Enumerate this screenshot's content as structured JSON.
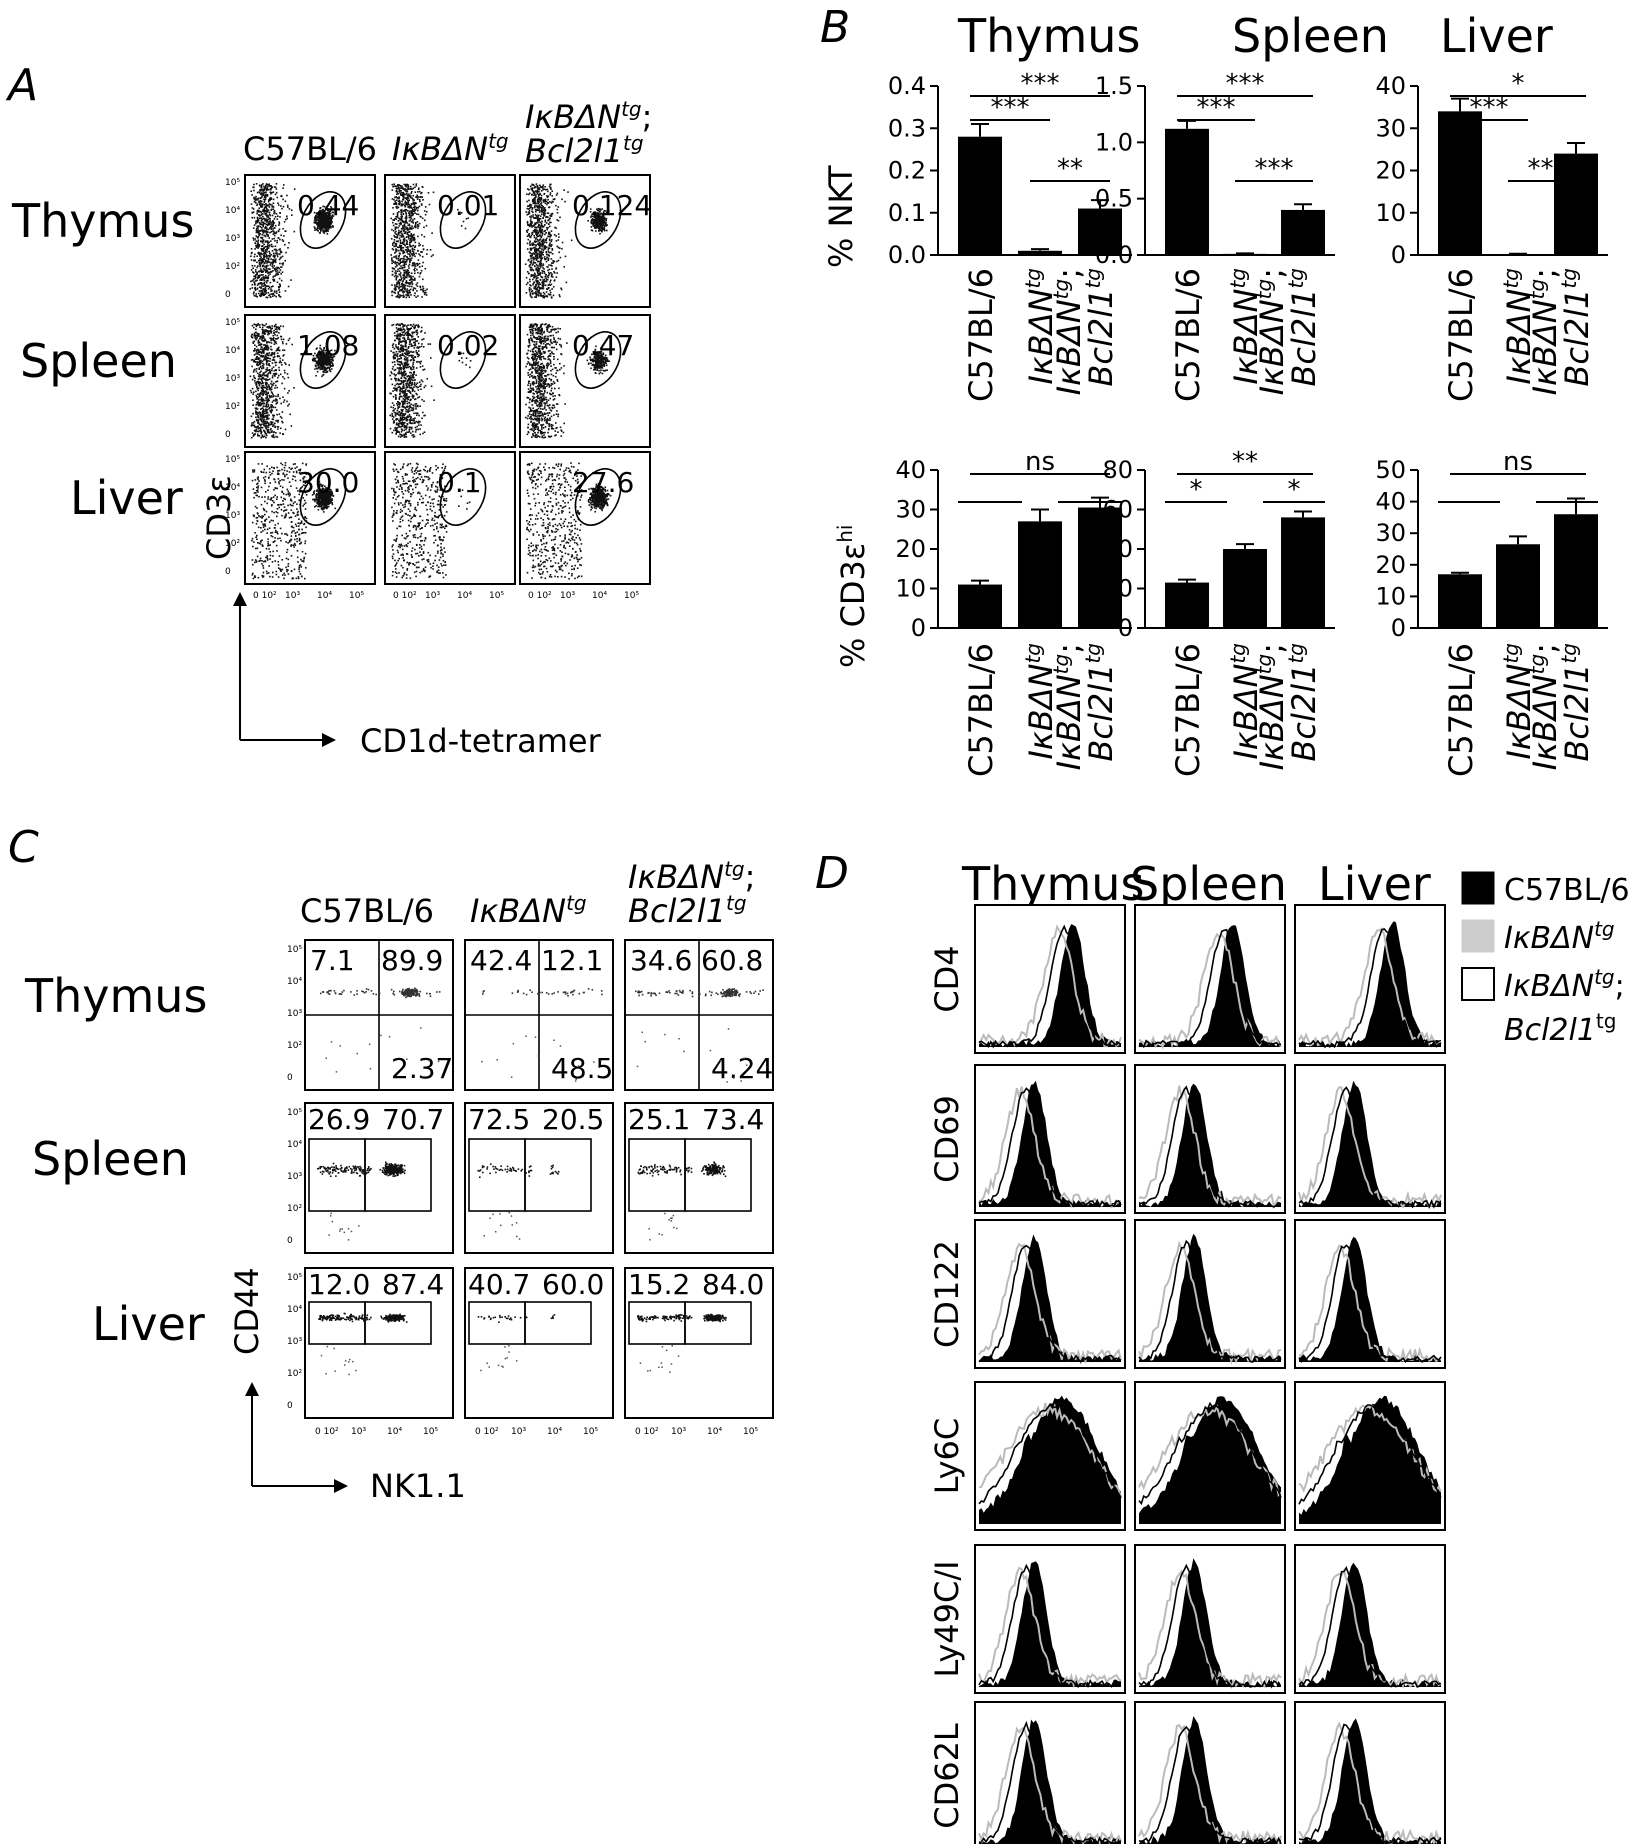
{
  "panels": {
    "A": {
      "letter": "A",
      "genotypes": [
        "C57BL/6",
        "IκBΔN",
        "IκBΔN",
        "Bcl2l1"
      ],
      "sup": "tg",
      "semicolon": ";",
      "tissues": [
        "Thymus",
        "Spleen",
        "Liver"
      ],
      "values": [
        [
          "0.44",
          "0.01",
          "0.124"
        ],
        [
          "1.08",
          "0.02",
          "0.47"
        ],
        [
          "30.0",
          "0.1",
          "27.6"
        ]
      ],
      "y_axis": "CD3ε",
      "x_axis": "CD1d-tetramer"
    },
    "B": {
      "letter": "B",
      "organs": [
        "Thymus",
        "Spleen",
        "Liver"
      ],
      "ylabel_top": "% NKT",
      "ylabel_bottom": "% CD3ε",
      "ylabel_bottom_sup": "hi",
      "categories": [
        "C57BL/6",
        "IκBΔN",
        "IκBΔN",
        "Bcl2l1"
      ],
      "sup": "tg",
      "semicolon": ";"
    },
    "C": {
      "letter": "C",
      "genotypes": [
        "C57BL/6",
        "IκBΔN",
        "IκBΔN",
        "Bcl2l1"
      ],
      "sup": "tg",
      "semicolon": ";",
      "tissues": [
        "Thymus",
        "Spleen",
        "Liver"
      ],
      "y_axis": "CD44",
      "x_axis": "NK1.1",
      "thymus_values": [
        [
          "7.1",
          "89.9",
          "2.37"
        ],
        [
          "42.4",
          "12.1",
          "48.5"
        ],
        [
          "34.6",
          "60.8",
          "4.24"
        ]
      ],
      "spleen_values": [
        [
          "26.9",
          "70.7"
        ],
        [
          "72.5",
          "20.5"
        ],
        [
          "25.1",
          "73.4"
        ]
      ],
      "liver_values": [
        [
          "12.0",
          "87.4"
        ],
        [
          "40.7",
          "60.0"
        ],
        [
          "15.2",
          "84.0"
        ]
      ]
    },
    "D": {
      "letter": "D",
      "tissues": [
        "Thymus",
        "Spleen",
        "Liver"
      ],
      "markers": [
        "CD4",
        "CD69",
        "CD122",
        "Ly6C",
        "Ly49C/I",
        "CD62L"
      ],
      "legend": [
        "C57BL/6",
        "IκBΔN",
        "IκBΔN",
        "Bcl2l1"
      ],
      "legend_sup": "tg",
      "legend_semicolon": ";"
    }
  },
  "tick_labels": {
    "flow_axis": [
      "10⁵",
      "10⁴",
      "10³",
      "10²",
      "0"
    ],
    "flow_x": [
      "0 10²",
      "10³",
      "10⁴",
      "10⁵"
    ]
  },
  "chart_data": [
    {
      "type": "bar",
      "title": "Thymus",
      "ylabel": "% NKT",
      "categories": [
        "C57BL/6",
        "IκBΔN tg",
        "IκBΔN tg; Bcl2l1 tg"
      ],
      "values": [
        0.28,
        0.01,
        0.11
      ],
      "errors": [
        0.03,
        0.004,
        0.02
      ],
      "ylim": [
        0,
        0.4
      ],
      "yticks": [
        "0.0",
        "0.1",
        "0.2",
        "0.3",
        "0.4"
      ],
      "significance": [
        {
          "pair": [
            0,
            1
          ],
          "label": "***"
        },
        {
          "pair": [
            0,
            2
          ],
          "label": "***"
        },
        {
          "pair": [
            1,
            2
          ],
          "label": "**"
        }
      ]
    },
    {
      "type": "bar",
      "title": "Spleen",
      "ylabel": "% NKT",
      "categories": [
        "C57BL/6",
        "IκBΔN tg",
        "IκBΔN tg; Bcl2l1 tg"
      ],
      "values": [
        1.12,
        0.01,
        0.4
      ],
      "errors": [
        0.07,
        0.004,
        0.05
      ],
      "ylim": [
        0,
        1.5
      ],
      "yticks": [
        "0.0",
        "0.5",
        "1.0",
        "1.5"
      ],
      "significance": [
        {
          "pair": [
            0,
            1
          ],
          "label": "***"
        },
        {
          "pair": [
            0,
            2
          ],
          "label": "***"
        },
        {
          "pair": [
            1,
            2
          ],
          "label": "***"
        }
      ]
    },
    {
      "type": "bar",
      "title": "Liver",
      "ylabel": "% NKT",
      "categories": [
        "C57BL/6",
        "IκBΔN tg",
        "IκBΔN tg; Bcl2l1 tg"
      ],
      "values": [
        34,
        0.2,
        24
      ],
      "errors": [
        3,
        0.1,
        2.5
      ],
      "ylim": [
        0,
        40
      ],
      "yticks": [
        "0",
        "10",
        "20",
        "30",
        "40"
      ],
      "significance": [
        {
          "pair": [
            0,
            1
          ],
          "label": "***"
        },
        {
          "pair": [
            0,
            2
          ],
          "label": "*"
        },
        {
          "pair": [
            1,
            2
          ],
          "label": "***"
        }
      ]
    },
    {
      "type": "bar",
      "title": "",
      "ylabel": "% CD3ε hi",
      "categories": [
        "C57BL/6",
        "IκBΔN tg",
        "IκBΔN tg; Bcl2l1 tg"
      ],
      "values": [
        11,
        27,
        30.5
      ],
      "errors": [
        1,
        3,
        2.5
      ],
      "ylim": [
        0,
        40
      ],
      "yticks": [
        "0",
        "10",
        "20",
        "30",
        "40"
      ],
      "significance": [
        {
          "pair": [
            0,
            1
          ],
          "label": ""
        },
        {
          "pair": [
            0,
            2
          ],
          "label": "ns"
        },
        {
          "pair": [
            1,
            2
          ],
          "label": ""
        }
      ]
    },
    {
      "type": "bar",
      "title": "",
      "ylabel": "% CD3ε hi",
      "categories": [
        "C57BL/6",
        "IκBΔN tg",
        "IκBΔN tg; Bcl2l1 tg"
      ],
      "values": [
        23,
        40,
        56
      ],
      "errors": [
        1.5,
        2.5,
        3
      ],
      "ylim": [
        0,
        80
      ],
      "yticks": [
        "0",
        "20",
        "40",
        "60",
        "80"
      ],
      "significance": [
        {
          "pair": [
            0,
            1
          ],
          "label": "*"
        },
        {
          "pair": [
            0,
            2
          ],
          "label": "**"
        },
        {
          "pair": [
            1,
            2
          ],
          "label": "*"
        }
      ]
    },
    {
      "type": "bar",
      "title": "",
      "ylabel": "% CD3ε hi",
      "categories": [
        "C57BL/6",
        "IκBΔN tg",
        "IκBΔN tg; Bcl2l1 tg"
      ],
      "values": [
        17,
        26.5,
        36
      ],
      "errors": [
        0.5,
        2.5,
        5
      ],
      "ylim": [
        0,
        50
      ],
      "yticks": [
        "0",
        "10",
        "20",
        "30",
        "40",
        "50"
      ],
      "significance": [
        {
          "pair": [
            0,
            1
          ],
          "label": ""
        },
        {
          "pair": [
            0,
            2
          ],
          "label": "ns"
        },
        {
          "pair": [
            1,
            2
          ],
          "label": ""
        }
      ]
    }
  ]
}
